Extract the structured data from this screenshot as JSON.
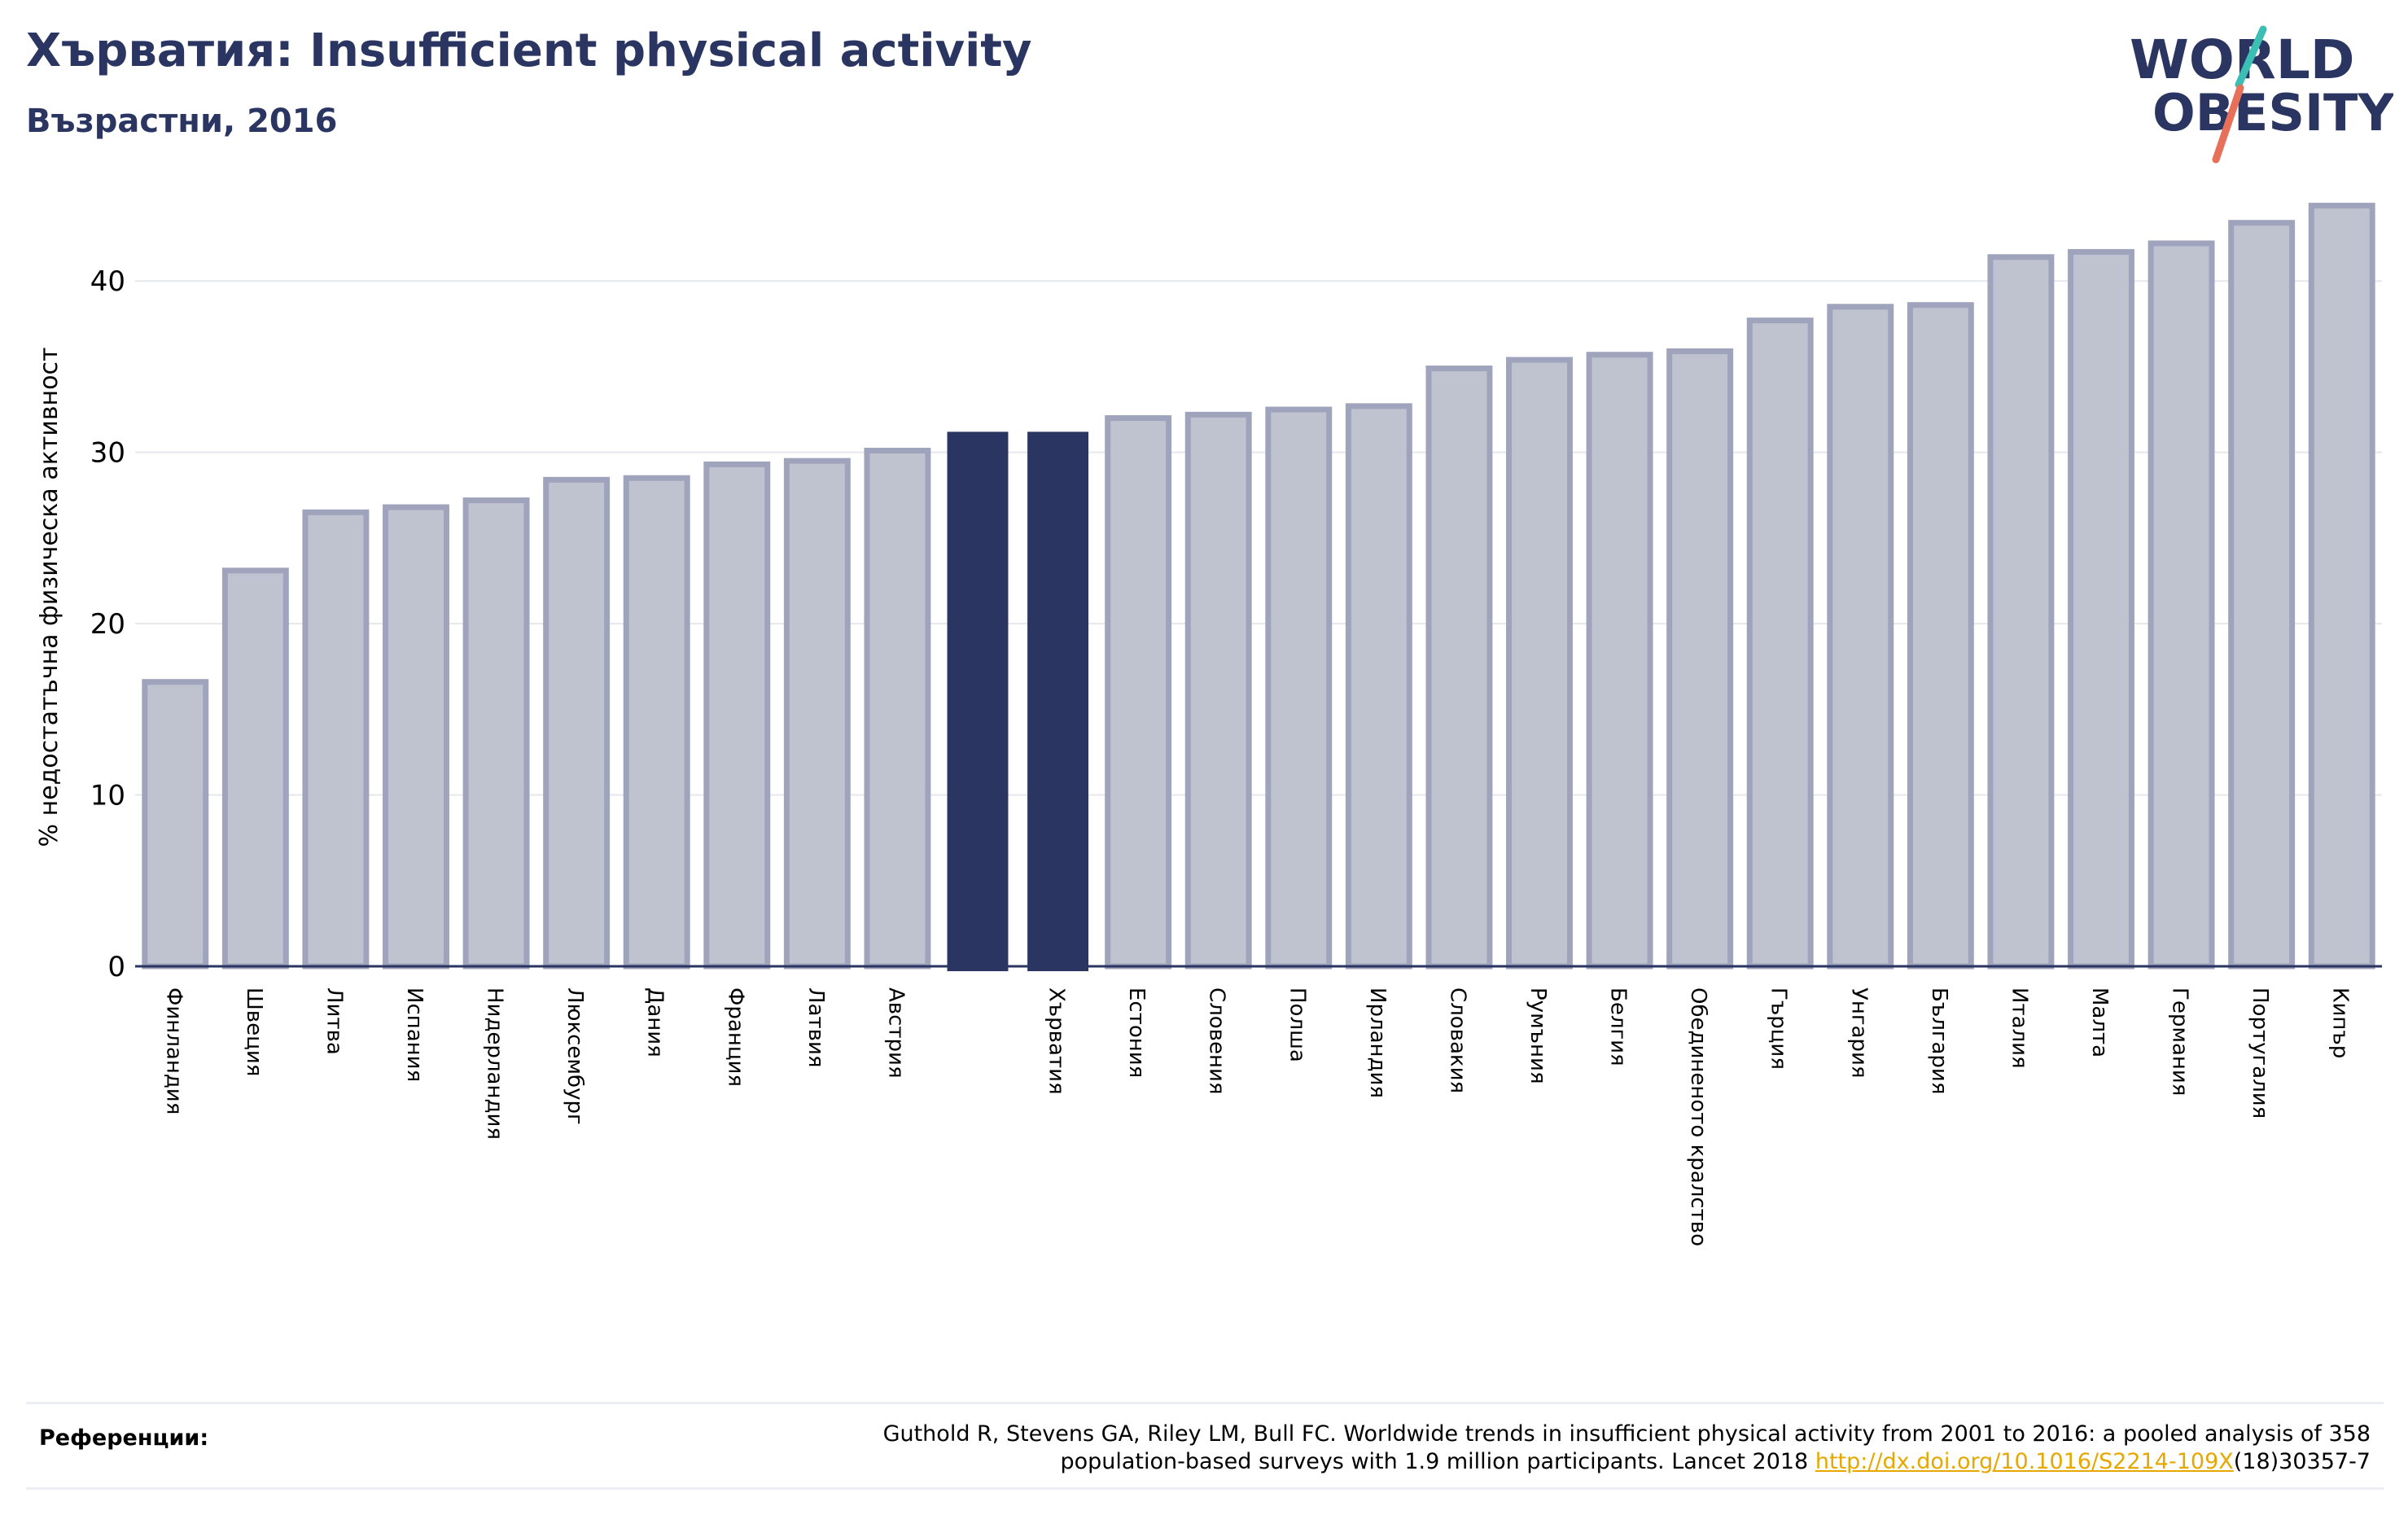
{
  "header": {
    "title": "Хърватия: Insufficient physical activity",
    "subtitle": "Възрастни, 2016"
  },
  "logo": {
    "line1": "WORLD",
    "line2": "OBESITY",
    "text_color": "#2a3561",
    "slash_teal": "#3bbfb5",
    "slash_coral": "#e8705a"
  },
  "colors": {
    "bar_default": "#bfc2cf",
    "bar_default_edge": "#9fa4bc",
    "bar_highlight": "#2a3561",
    "axis": "#2a3561",
    "grid": "#e6e7ec"
  },
  "chart_data": {
    "type": "bar",
    "title": "Хърватия: Insufficient physical activity",
    "subtitle": "Възрастни, 2016",
    "ylabel": "% недостатъчна физическа активност",
    "xlabel": "",
    "ylim": [
      0,
      45
    ],
    "yticks": [
      "0",
      "10",
      "20",
      "30",
      "40"
    ],
    "grid": true,
    "categories": [
      "Финландия",
      "Швеция",
      "Литва",
      "Испания",
      "Нидерландия",
      "Люксембург",
      "Дания",
      "Франция",
      "Латвия",
      "Австрия",
      "",
      "Хърватия",
      "Естония",
      "Словения",
      "Полша",
      "Ирландия",
      "Словакия",
      "Румъния",
      "Белгия",
      "Обединеното кралство",
      "Гърция",
      "Унгария",
      "България",
      "Италия",
      "Малта",
      "Германия",
      "Португалия",
      "Кипър"
    ],
    "values": [
      16.6,
      23.1,
      26.5,
      26.8,
      27.2,
      28.4,
      28.5,
      29.3,
      29.5,
      30.1,
      31.2,
      31.2,
      32.0,
      32.2,
      32.5,
      32.7,
      34.9,
      35.4,
      35.7,
      35.9,
      37.7,
      38.5,
      38.6,
      41.4,
      41.7,
      42.2,
      43.4,
      44.4
    ],
    "highlighted": [
      10,
      11
    ]
  },
  "references": {
    "label": "Референции:",
    "line1": "Guthold R, Stevens GA, Riley LM, Bull FC. Worldwide trends in insufficient physical activity from 2001 to 2016: a pooled analysis of 358",
    "line2_prefix": "population-based surveys with 1.9 million participants. Lancet 2018 ",
    "link": "http://dx.doi.org/10.1016/S2214-109X",
    "line2_suffix": "(18)30357-7"
  }
}
